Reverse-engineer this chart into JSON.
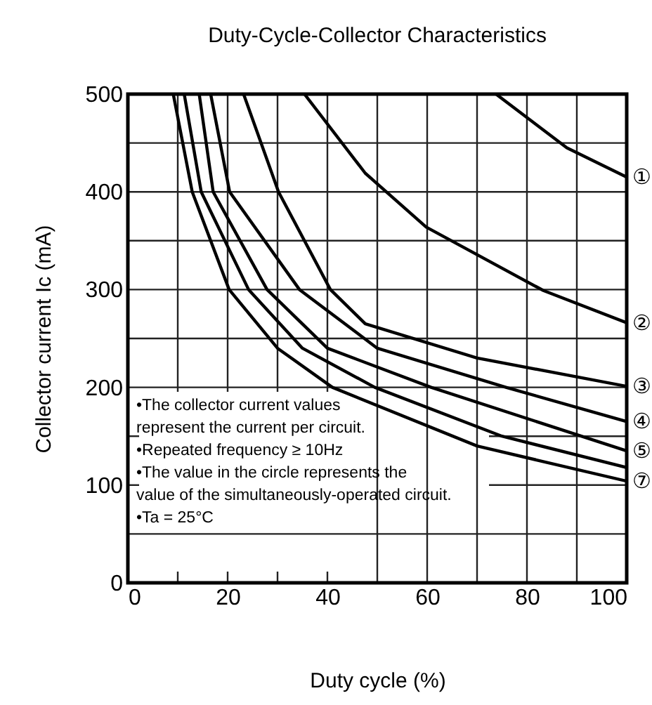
{
  "chart_data": {
    "type": "line",
    "title": "Duty-Cycle-Collector Characteristics",
    "xlabel": "Duty cycle  (%)",
    "ylabel": "Collector current  Ic (mA)",
    "xlim": [
      0,
      100
    ],
    "ylim": [
      0,
      500
    ],
    "xticks": [
      0,
      {
        "value": 10,
        "label": null
      },
      20,
      {
        "value": 30,
        "label": null
      },
      40,
      {
        "value": 50,
        "label": null
      },
      60,
      {
        "value": 70,
        "label": null
      },
      80,
      {
        "value": 90,
        "label": null
      },
      100
    ],
    "yticks": [
      0,
      {
        "value": 50,
        "label": null
      },
      100,
      {
        "value": 150,
        "label": null
      },
      200,
      {
        "value": 250,
        "label": null
      },
      300,
      {
        "value": 350,
        "label": null
      },
      400,
      {
        "value": 450,
        "label": null
      },
      500
    ],
    "grid": true,
    "line_style": "solid",
    "marker": "none",
    "legend": false,
    "series": [
      {
        "name": "①",
        "color": "#000000",
        "x": [
          73.8,
          88,
          100
        ],
        "values": [
          500,
          445,
          415
        ]
      },
      {
        "name": "②",
        "color": "#000000",
        "x": [
          35.4,
          47.6,
          59.8,
          83.3,
          100
        ],
        "values": [
          500,
          419,
          364,
          299,
          266
        ]
      },
      {
        "name": "③",
        "color": "#000000",
        "x": [
          23.2,
          30.2,
          40.6,
          47.6,
          70,
          100
        ],
        "values": [
          500,
          400,
          300,
          265,
          230,
          201
        ]
      },
      {
        "name": "④",
        "color": "#000000",
        "x": [
          16.6,
          20.4,
          34.4,
          50,
          75.8,
          100
        ],
        "values": [
          500,
          400,
          300,
          240,
          200,
          165
        ]
      },
      {
        "name": "⑤",
        "color": "#000000",
        "x": [
          14.3,
          17.1,
          27.9,
          40,
          60.8,
          100
        ],
        "values": [
          500,
          400,
          300,
          240,
          200,
          135
        ]
      },
      {
        "color": "#000000",
        "x": [
          11.3,
          14.7,
          24.2,
          35,
          49.5,
          75,
          100
        ],
        "values": [
          500,
          400,
          300,
          240,
          200,
          150,
          118
        ]
      },
      {
        "name": "⑦",
        "color": "#000000",
        "x": [
          9.1,
          12.9,
          20.3,
          30,
          41,
          70,
          100
        ],
        "values": [
          500,
          400,
          300,
          240,
          200,
          140,
          104
        ]
      }
    ],
    "annotations": [
      "•The collector current values",
      "  represent the current per circuit.",
      "•Repeated frequency ≥ 10Hz",
      "•The value in the circle represents the",
      "  value of the simultaneously-operated circuit.",
      "•Ta = 25°C"
    ]
  }
}
